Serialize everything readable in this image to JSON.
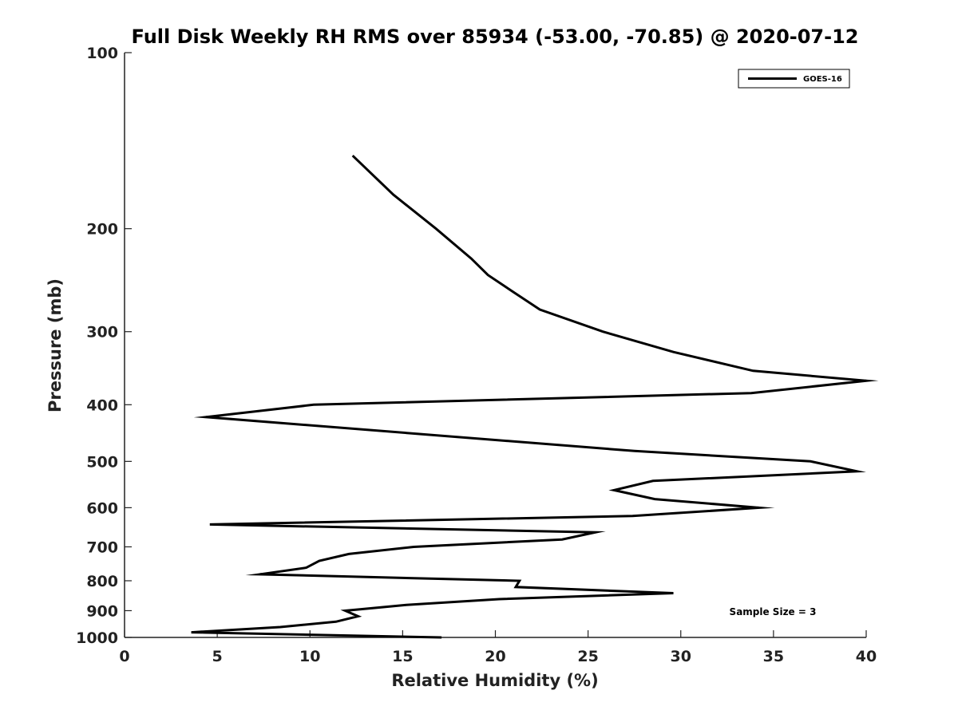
{
  "chart_data": {
    "type": "line",
    "title": "Full Disk Weekly RH RMS over 85934 (-53.00, -70.85) @ 2020-07-12",
    "xlabel": "Relative Humidity (%)",
    "ylabel": "Pressure (mb)",
    "xlim": [
      0,
      40
    ],
    "ylim": [
      100,
      1000
    ],
    "y_scale": "log",
    "y_reversed": true,
    "x_ticks": [
      "0",
      "5",
      "10",
      "15",
      "20",
      "25",
      "30",
      "35",
      "40"
    ],
    "y_ticks": [
      "100",
      "200",
      "300",
      "400",
      "500",
      "600",
      "700",
      "800",
      "900",
      "1000"
    ],
    "grid": false,
    "legend_position": "top-right",
    "series": [
      {
        "name": "GOES-16",
        "color": "#000000",
        "points": [
          [
            12.3,
            150
          ],
          [
            14.5,
            175
          ],
          [
            16.8,
            200
          ],
          [
            18.7,
            225
          ],
          [
            19.6,
            240
          ],
          [
            21.0,
            257
          ],
          [
            22.4,
            275
          ],
          [
            25.8,
            300
          ],
          [
            29.6,
            325
          ],
          [
            33.9,
            350
          ],
          [
            40.0,
            364
          ],
          [
            33.8,
            382
          ],
          [
            10.2,
            400
          ],
          [
            4.4,
            420
          ],
          [
            27.5,
            480
          ],
          [
            37.0,
            500
          ],
          [
            39.5,
            520
          ],
          [
            28.5,
            540
          ],
          [
            26.4,
            560
          ],
          [
            28.6,
            580
          ],
          [
            34.2,
            600
          ],
          [
            27.4,
            620
          ],
          [
            4.6,
            641
          ],
          [
            25.4,
            661
          ],
          [
            23.6,
            680
          ],
          [
            15.6,
            700
          ],
          [
            12.1,
            720
          ],
          [
            10.5,
            740
          ],
          [
            9.8,
            760
          ],
          [
            7.3,
            780
          ],
          [
            21.3,
            800
          ],
          [
            21.1,
            820
          ],
          [
            29.6,
            840
          ],
          [
            20.2,
            860
          ],
          [
            15.2,
            880
          ],
          [
            11.9,
            900
          ],
          [
            12.6,
            920
          ],
          [
            11.4,
            940
          ],
          [
            8.4,
            960
          ],
          [
            3.6,
            980
          ],
          [
            17.1,
            1000
          ]
        ]
      }
    ],
    "annotation": "Sample Size = 3"
  }
}
